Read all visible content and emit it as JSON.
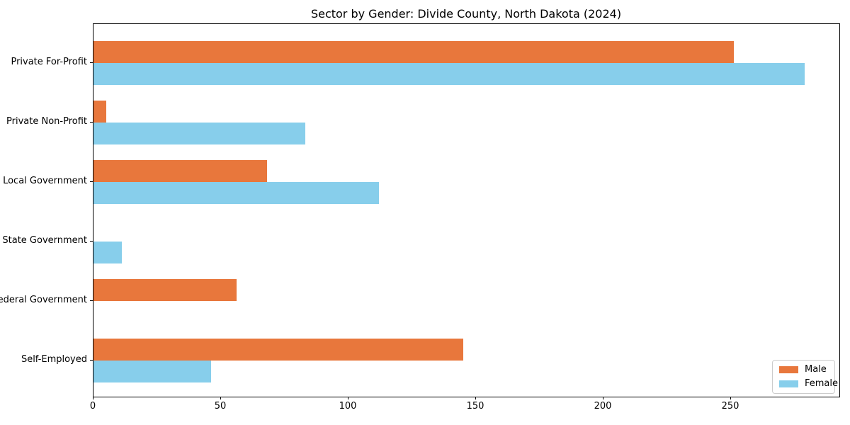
{
  "title": "Sector by Gender: Divide County, North Dakota (2024)",
  "chart_data": {
    "type": "bar",
    "orientation": "horizontal",
    "title": "Sector by Gender: Divide County, North Dakota (2024)",
    "xlabel": "",
    "ylabel": "",
    "categories": [
      "Private For-Profit",
      "Private Non-Profit",
      "Local Government",
      "State Government",
      "Federal Government",
      "Self-Employed"
    ],
    "series": [
      {
        "name": "Male",
        "color": "#E8773C",
        "values": [
          251,
          5,
          68,
          0,
          56,
          145
        ]
      },
      {
        "name": "Female",
        "color": "#87CEEB",
        "values": [
          279,
          83,
          112,
          11,
          0,
          46
        ]
      }
    ],
    "xlim": [
      0,
      292.5
    ],
    "xticks": [
      0,
      50,
      100,
      150,
      200,
      250
    ],
    "xtick_labels": [
      "0",
      "50",
      "100",
      "150",
      "200",
      "250"
    ],
    "grid": false,
    "legend_position": "lower right",
    "spine_color": "#000000",
    "background_color": "#ffffff"
  },
  "legend": {
    "items": [
      {
        "label": "Male",
        "color": "#E8773C"
      },
      {
        "label": "Female",
        "color": "#87CEEB"
      }
    ]
  }
}
